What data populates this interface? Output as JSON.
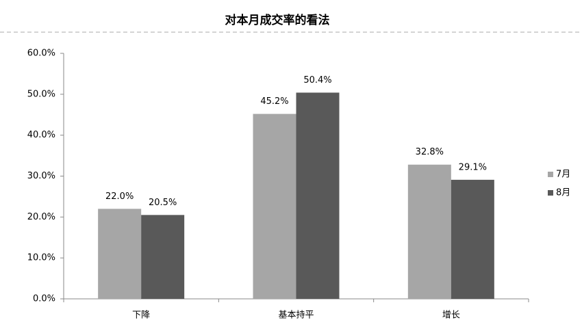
{
  "chart_data": {
    "type": "bar",
    "title": "对本月成交率的看法",
    "categories": [
      "下降",
      "基本持平",
      "增长"
    ],
    "series": [
      {
        "name": "7月",
        "color": "#a6a6a6",
        "values": [
          22.0,
          45.2,
          32.8
        ],
        "value_labels": [
          "22.0%",
          "45.2%",
          "32.8%"
        ]
      },
      {
        "name": "8月",
        "color": "#595959",
        "values": [
          20.5,
          50.4,
          29.1
        ],
        "value_labels": [
          "20.5%",
          "50.4%",
          "29.1%"
        ]
      }
    ],
    "ylim": [
      0,
      60
    ],
    "yticks": [
      {
        "value": 0,
        "label": "0.0%"
      },
      {
        "value": 10,
        "label": "10.0%"
      },
      {
        "value": 20,
        "label": "20.0%"
      },
      {
        "value": 30,
        "label": "30.0%"
      },
      {
        "value": 40,
        "label": "40.0%"
      },
      {
        "value": 50,
        "label": "50.0%"
      },
      {
        "value": 60,
        "label": "60.0%"
      }
    ],
    "grid": false,
    "legend": "right"
  }
}
